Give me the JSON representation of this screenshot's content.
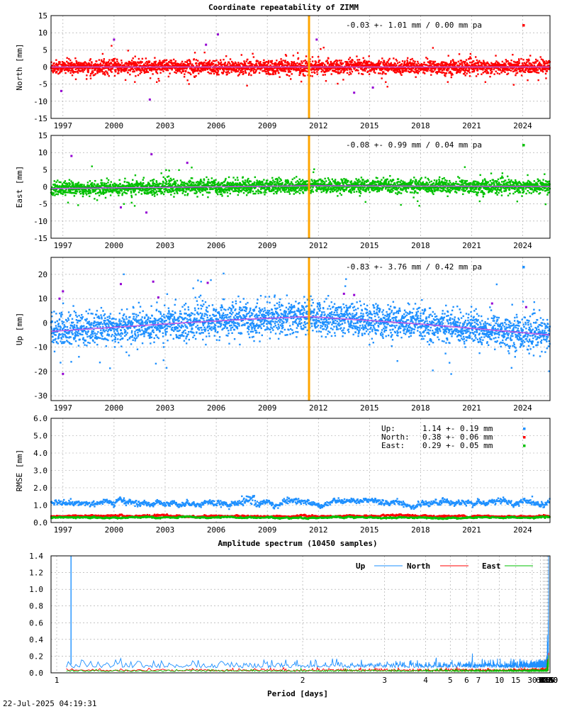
{
  "title": "Coordinate repeatability of ZIMM",
  "timestamp": "22-Jul-2025 04:19:31",
  "colors": {
    "north": "#ff0000",
    "east": "#00c000",
    "up": "#1e90ff",
    "model": "#9400d3",
    "event": "#ffa500",
    "outlier": "#9400d3"
  },
  "years": [
    "1997",
    "2000",
    "2003",
    "2006",
    "2009",
    "2012",
    "2015",
    "2018",
    "2021",
    "2024"
  ],
  "chart_data": [
    {
      "type": "scatter",
      "id": "north",
      "ylabel": "North [mm]",
      "ylim": [
        -15,
        15
      ],
      "yticks": [
        -15,
        -10,
        -5,
        0,
        5,
        10,
        15
      ],
      "xlim": [
        1996.3,
        2025.6
      ],
      "event_year": 2011.45,
      "stat": "-0.03 +- 1.01 mm /  0.00 mm pa",
      "noise_sd": 1.0,
      "trend": {
        "type": "flat",
        "values": [
          [
            1996.3,
            0
          ],
          [
            2025.6,
            0
          ]
        ]
      },
      "outliers": [
        [
          2000.0,
          8.0
        ],
        [
          2002.1,
          -9.5
        ],
        [
          2005.4,
          6.5
        ],
        [
          2006.1,
          9.5
        ],
        [
          2011.9,
          8.0
        ],
        [
          2014.1,
          -7.5
        ],
        [
          1996.9,
          -7.0
        ],
        [
          2015.2,
          -6.0
        ]
      ]
    },
    {
      "type": "scatter",
      "id": "east",
      "ylabel": "East [mm]",
      "ylim": [
        -15,
        15
      ],
      "yticks": [
        -15,
        -10,
        -5,
        0,
        5,
        10,
        15
      ],
      "xlim": [
        1996.3,
        2025.6
      ],
      "event_year": 2011.45,
      "stat": "-0.08 +- 0.99 mm /  0.04 mm pa",
      "noise_sd": 1.0,
      "trend": {
        "type": "flat",
        "values": [
          [
            1996.3,
            -0.5
          ],
          [
            2011.45,
            0.3
          ],
          [
            2025.6,
            0.1
          ]
        ]
      },
      "outliers": [
        [
          1997.5,
          9.0
        ],
        [
          2002.2,
          9.5
        ],
        [
          2001.9,
          -7.5
        ],
        [
          2004.3,
          7.0
        ],
        [
          2000.4,
          -6.0
        ]
      ]
    },
    {
      "type": "scatter",
      "id": "up",
      "ylabel": "Up [mm]",
      "ylim": [
        -32,
        27
      ],
      "yticks": [
        -30,
        -20,
        -10,
        0,
        10,
        20
      ],
      "xlim": [
        1996.3,
        2025.6
      ],
      "event_year": 2011.45,
      "stat": "-0.83 +- 3.76 mm /  0.42 mm pa",
      "noise_sd": 3.4,
      "trend": {
        "type": "curve",
        "values": [
          [
            1996.3,
            -3.5
          ],
          [
            2000,
            -1.8
          ],
          [
            2004,
            0.0
          ],
          [
            2008,
            1.6
          ],
          [
            2011.45,
            2.6
          ],
          [
            2015,
            1.0
          ],
          [
            2018,
            -0.5
          ],
          [
            2021,
            -2.2
          ],
          [
            2025.6,
            -5.0
          ]
        ]
      },
      "outliers": [
        [
          1997.0,
          13.0
        ],
        [
          1996.8,
          10.0
        ],
        [
          2000.4,
          16.0
        ],
        [
          2002.3,
          17.0
        ],
        [
          2005.5,
          16.5
        ],
        [
          2013.5,
          12.0
        ],
        [
          2014.1,
          11.5
        ],
        [
          2022.2,
          8.0
        ],
        [
          2024.2,
          6.5
        ],
        [
          1997.0,
          -21.0
        ],
        [
          2002.6,
          10.5
        ]
      ]
    },
    {
      "type": "scatter",
      "id": "rmse",
      "ylabel": "RMSE [mm]",
      "ylim": [
        0,
        6
      ],
      "yticks": [
        0.0,
        1.0,
        2.0,
        3.0,
        4.0,
        5.0,
        6.0
      ],
      "xlim": [
        1996.3,
        2025.6
      ],
      "series": [
        {
          "name": "Up:",
          "stat": "1.14 +- 0.19 mm",
          "mean": 1.14,
          "sd": 0.19,
          "color": "#1e90ff"
        },
        {
          "name": "North:",
          "stat": "0.38 +- 0.06 mm",
          "mean": 0.38,
          "sd": 0.06,
          "color": "#ff0000"
        },
        {
          "name": "East:",
          "stat": "0.29 +- 0.05 mm",
          "mean": 0.29,
          "sd": 0.05,
          "color": "#00c000"
        }
      ]
    },
    {
      "type": "line",
      "id": "spectrum",
      "title": "Amplitude spectrum (10450 samples)",
      "xlabel": "Period [days]",
      "xscale": "reciprocal",
      "ylim": [
        0,
        1.4
      ],
      "yticks": [
        0.0,
        0.2,
        0.4,
        0.6,
        0.8,
        1.0,
        1.2,
        1.4
      ],
      "xticks": [
        "1",
        "2",
        "3",
        "4",
        "5",
        "6",
        "7",
        "10",
        "15",
        "30",
        "61",
        "91",
        "122",
        "183",
        "365",
        "730",
        "2190",
        "4380",
        "8760"
      ],
      "series": [
        {
          "name": "Up",
          "color": "#1e90ff",
          "values": [
            [
              730,
              0.18
            ],
            [
              1000,
              0.3
            ],
            [
              1250,
              0.62
            ],
            [
              1460,
              0.36
            ],
            [
              1750,
              0.32
            ],
            [
              2190,
              0.9
            ],
            [
              2700,
              0.2
            ],
            [
              3000,
              0.3
            ],
            [
              4380,
              0.7
            ],
            [
              6000,
              1.2
            ],
            [
              8760,
              1.4
            ]
          ]
        },
        {
          "name": "North",
          "color": "#ff0000",
          "values": [
            [
              730,
              0.02
            ],
            [
              1460,
              0.03
            ],
            [
              2190,
              0.1
            ],
            [
              4380,
              0.2
            ],
            [
              6000,
              0.24
            ],
            [
              8760,
              0.2
            ]
          ]
        },
        {
          "name": "East",
          "color": "#00c000",
          "values": [
            [
              730,
              0.03
            ],
            [
              1460,
              0.08
            ],
            [
              2190,
              0.08
            ],
            [
              4380,
              0.15
            ],
            [
              6000,
              0.1
            ],
            [
              8760,
              0.21
            ]
          ]
        }
      ]
    }
  ]
}
